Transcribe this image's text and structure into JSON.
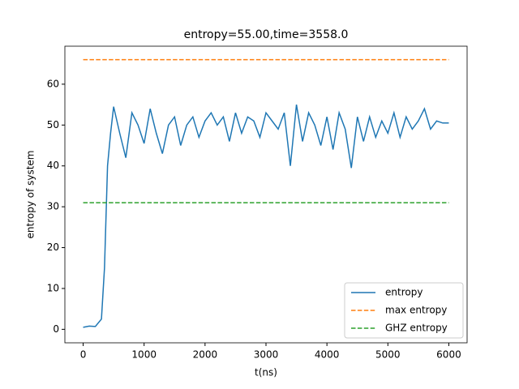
{
  "chart_data": {
    "type": "line",
    "title": "entropy=55.00,time=3558.0",
    "xlabel": "t(ns)",
    "ylabel": "entropy of system",
    "series": [
      {
        "name": "entropy",
        "color": "#1f77b4",
        "style": "solid",
        "x": [
          0,
          100,
          200,
          300,
          350,
          400,
          450,
          500,
          600,
          700,
          800,
          900,
          1000,
          1100,
          1200,
          1300,
          1400,
          1500,
          1600,
          1700,
          1800,
          1900,
          2000,
          2100,
          2200,
          2300,
          2400,
          2500,
          2600,
          2700,
          2800,
          2900,
          3000,
          3100,
          3200,
          3300,
          3400,
          3500,
          3600,
          3700,
          3800,
          3900,
          4000,
          4100,
          4200,
          4300,
          4400,
          4500,
          4600,
          4700,
          4800,
          4900,
          5000,
          5100,
          5200,
          5300,
          5400,
          5500,
          5600,
          5700,
          5800,
          5900,
          6000
        ],
        "values": [
          0.5,
          0.8,
          0.7,
          2.5,
          15,
          40,
          48,
          54.5,
          48,
          42,
          53,
          50,
          45.5,
          54,
          48,
          43,
          50,
          52,
          45,
          50,
          52,
          47,
          51,
          53,
          50,
          52,
          46,
          53,
          48,
          52,
          51,
          47,
          53,
          51,
          49,
          53,
          40,
          55,
          46,
          53,
          50,
          45,
          52,
          44,
          53,
          49,
          39.5,
          52,
          46,
          52,
          47,
          51,
          48,
          53,
          47,
          52,
          49,
          51,
          54,
          49,
          51,
          50.5,
          50.5
        ]
      },
      {
        "name": "max entropy",
        "color": "#ff7f0e",
        "style": "dashed",
        "x": [
          0,
          6000
        ],
        "values": [
          66,
          66
        ]
      },
      {
        "name": "GHZ entropy",
        "color": "#2ca02c",
        "style": "dashed",
        "x": [
          0,
          6000
        ],
        "values": [
          31,
          31
        ]
      }
    ],
    "xlim": [
      -300,
      6300
    ],
    "ylim": [
      -3.3,
      69.3
    ],
    "xticks": [
      0,
      1000,
      2000,
      3000,
      4000,
      5000,
      6000
    ],
    "yticks": [
      0,
      10,
      20,
      30,
      40,
      50,
      60
    ],
    "legend": "lower right"
  }
}
